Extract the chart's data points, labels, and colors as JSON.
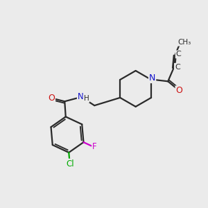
{
  "bg_color": "#ebebeb",
  "bond_color": "#2a2a2a",
  "atom_colors": {
    "N": "#1010cc",
    "O": "#cc1010",
    "Cl": "#00aa00",
    "F": "#cc00cc",
    "C": "#2a2a2a"
  }
}
